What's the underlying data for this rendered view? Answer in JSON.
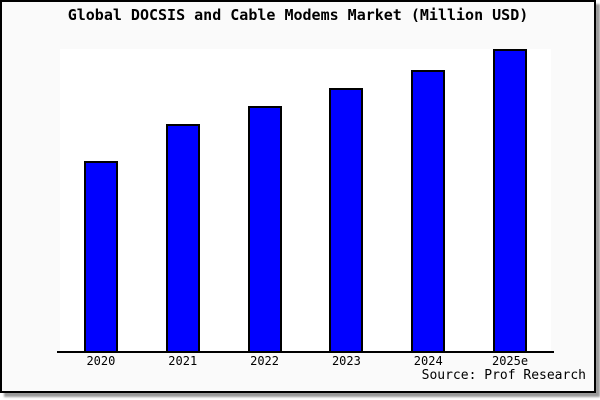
{
  "figure": {
    "title": "Global DOCSIS and Cable Modems Market (Million USD)",
    "source": "Source: Prof Research"
  },
  "chart_data": {
    "type": "bar",
    "title": "Global DOCSIS and Cable Modems Market (Million USD)",
    "categories": [
      "2020",
      "2021",
      "2022",
      "2023",
      "2024",
      "2025e"
    ],
    "values": [
      63,
      75,
      81,
      87,
      93,
      100
    ],
    "value_scale": "relative units, no y-axis labels shown (tallest bar 2025e = 100)",
    "xlabel": "",
    "ylabel": "",
    "ylim": [
      0,
      100
    ],
    "grid": false,
    "legend": false,
    "source": "Source: Prof Research"
  },
  "colors": {
    "figure_bg": "#fafafa",
    "plot_bg": "#ffffff",
    "bar_fill": "#0000ff",
    "bar_edge": "#000000",
    "border": "#000000",
    "shadow": "#999999"
  }
}
